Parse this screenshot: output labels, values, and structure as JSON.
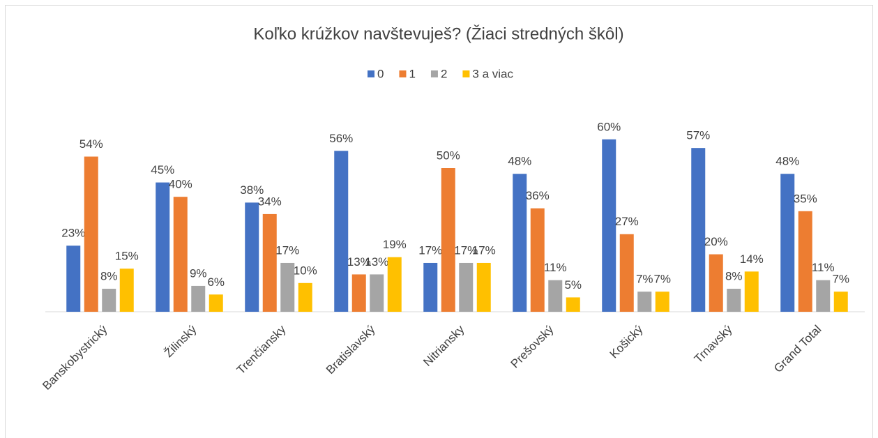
{
  "chart_data": {
    "type": "bar",
    "title": "Koľko krúžkov navštevuješ? (Žiaci stredných škôl)",
    "categories": [
      "Banskobystrický",
      "Žilinský",
      "Trenčiansky",
      "Bratislavský",
      "Nitriansky",
      "Prešovský",
      "Košický",
      "Trnavský",
      "Grand Total"
    ],
    "series": [
      {
        "name": "0",
        "color": "#4472c4",
        "values": [
          23,
          45,
          38,
          56,
          17,
          48,
          60,
          57,
          48
        ],
        "value_labels": [
          "23%",
          "45%",
          "38%",
          "56%",
          "17%",
          "48%",
          "60%",
          "57%",
          "48%"
        ]
      },
      {
        "name": "1",
        "color": "#ed7d31",
        "values": [
          54,
          40,
          34,
          13,
          50,
          36,
          27,
          20,
          35
        ],
        "value_labels": [
          "54%",
          "40%",
          "34%",
          "13%",
          "50%",
          "36%",
          "27%",
          "20%",
          "35%"
        ]
      },
      {
        "name": "2",
        "color": "#a5a5a5",
        "values": [
          8,
          9,
          17,
          13,
          17,
          11,
          7,
          8,
          11
        ],
        "value_labels": [
          "8%",
          "9%",
          "17%",
          "13%",
          "17%",
          "11%",
          "7%",
          "8%",
          "11%"
        ]
      },
      {
        "name": "3 a viac",
        "color": "#ffc000",
        "values": [
          15,
          6,
          10,
          19,
          17,
          5,
          7,
          14,
          7
        ],
        "value_labels": [
          "15%",
          "6%",
          "10%",
          "19%",
          "17%",
          "5%",
          "7%",
          "14%",
          "7%"
        ]
      }
    ],
    "legend": "top"
  }
}
